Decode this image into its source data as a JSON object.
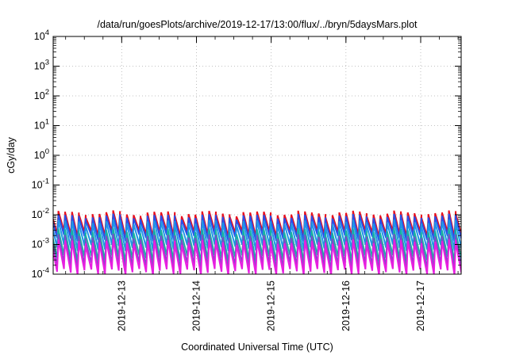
{
  "chart_data": {
    "type": "line",
    "title": "/data/run/goesPlots/archive/2019-12-17/13:00/flux/../bryn/5daysMars.plot",
    "xlabel": "Coordinated Universal Time (UTC)",
    "ylabel": "cGy/day",
    "y_scale": "log",
    "ylim": [
      0.0001,
      10000
    ],
    "xlim": [
      "2019-12-12T02:00",
      "2019-12-17T13:00"
    ],
    "x_tick_labels": [
      "2019-12-13",
      "2019-12-14",
      "2019-12-15",
      "2019-12-16",
      "2019-12-17"
    ],
    "y_tick_labels": [
      {
        "base": "10",
        "exp": "4"
      },
      {
        "base": "10",
        "exp": "3"
      },
      {
        "base": "10",
        "exp": "2"
      },
      {
        "base": "10",
        "exp": "1"
      },
      {
        "base": "10",
        "exp": "0"
      },
      {
        "base": "10",
        "exp": "-1"
      },
      {
        "base": "10",
        "exp": "-2"
      },
      {
        "base": "10",
        "exp": "-3"
      },
      {
        "base": "10",
        "exp": "-4"
      }
    ],
    "grid": true,
    "series_note_cycle_hours": 2.2,
    "series": [
      {
        "color": "#e8101e",
        "peak": 0.011,
        "trough": 0.0023,
        "width": 2.0
      },
      {
        "color": "#2850e8",
        "peak": 0.0085,
        "trough": 0.0017,
        "width": 2.0
      },
      {
        "color": "#1e96e6",
        "peak": 0.0055,
        "trough": 0.0008,
        "width": 2.0
      },
      {
        "color": "#18b0a0",
        "peak": 0.0028,
        "trough": 0.00035,
        "width": 1.8
      },
      {
        "color": "#7c4cc8",
        "peak": 0.0018,
        "trough": 0.0002,
        "width": 1.8
      },
      {
        "color": "#e81ee0",
        "peak": 0.0012,
        "trough": 0.00012,
        "width": 2.0
      }
    ]
  }
}
